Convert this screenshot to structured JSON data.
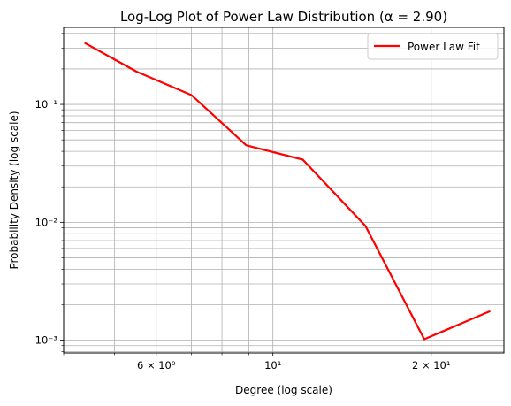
{
  "chart_data": {
    "type": "line",
    "title": "Log-Log Plot of Power Law Distribution (α = 2.90)",
    "xlabel": "Degree (log scale)",
    "ylabel": "Probability Density (log scale)",
    "x_scale": "log",
    "y_scale": "log",
    "xlim": [
      4.0,
      27.5
    ],
    "ylim": [
      0.00078,
      0.45
    ],
    "grid": true,
    "grid_which": "both",
    "legend": "upper right",
    "x_ticks": [
      {
        "value": 6,
        "label": "6 × 10⁰"
      },
      {
        "value": 10,
        "label": "10¹"
      },
      {
        "value": 20,
        "label": "2 × 10¹"
      }
    ],
    "y_ticks": [
      {
        "value": 0.001,
        "label": "10⁻³"
      },
      {
        "value": 0.01,
        "label": "10⁻²"
      },
      {
        "value": 0.1,
        "label": "10⁻¹"
      }
    ],
    "series": [
      {
        "name": "Power Law Fit",
        "color": "#ff0000",
        "x": [
          4.4,
          5.5,
          7.0,
          8.9,
          11.4,
          15.0,
          19.4,
          25.8
        ],
        "y": [
          0.33,
          0.19,
          0.12,
          0.045,
          0.034,
          0.0093,
          0.00102,
          0.00175
        ]
      }
    ]
  }
}
